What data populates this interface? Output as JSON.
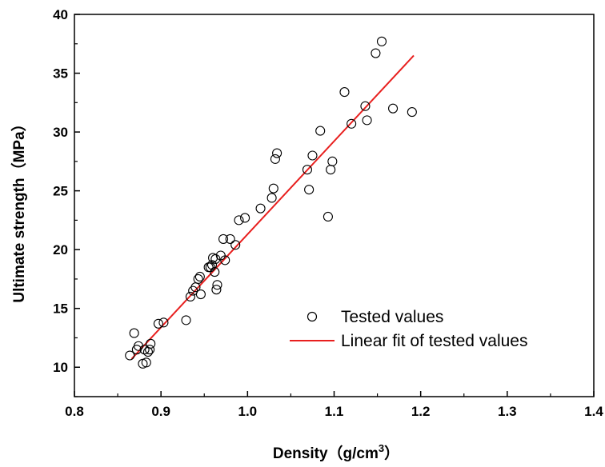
{
  "chart_data": {
    "type": "scatter",
    "xlabel": "Density（g/cm",
    "xlabel_sup": "3",
    "xlabel_close": "）",
    "ylabel": "Ultimate strength（MPa）",
    "xlim": [
      0.8,
      1.4
    ],
    "ylim": [
      7.5,
      40
    ],
    "x_ticks": [
      "0.8",
      "0.9",
      "1.0",
      "1.1",
      "1.2",
      "1.3",
      "1.4"
    ],
    "y_ticks": [
      "10",
      "15",
      "20",
      "25",
      "30",
      "35",
      "40"
    ],
    "legend_position": "bottom-right",
    "series": [
      {
        "name": "Tested values",
        "marker": "open-circle",
        "color": "#000000",
        "points": [
          [
            0.864,
            11.0
          ],
          [
            0.869,
            12.9
          ],
          [
            0.872,
            11.5
          ],
          [
            0.874,
            11.8
          ],
          [
            0.879,
            10.3
          ],
          [
            0.881,
            11.5
          ],
          [
            0.883,
            10.4
          ],
          [
            0.885,
            11.3
          ],
          [
            0.887,
            11.5
          ],
          [
            0.888,
            12.0
          ],
          [
            0.897,
            13.7
          ],
          [
            0.903,
            13.8
          ],
          [
            0.929,
            14.0
          ],
          [
            0.934,
            16.0
          ],
          [
            0.937,
            16.5
          ],
          [
            0.94,
            16.8
          ],
          [
            0.943,
            17.5
          ],
          [
            0.945,
            17.7
          ],
          [
            0.946,
            16.2
          ],
          [
            0.955,
            18.5
          ],
          [
            0.957,
            18.5
          ],
          [
            0.959,
            18.7
          ],
          [
            0.96,
            19.3
          ],
          [
            0.962,
            18.1
          ],
          [
            0.963,
            19.2
          ],
          [
            0.964,
            16.6
          ],
          [
            0.965,
            17.0
          ],
          [
            0.969,
            19.5
          ],
          [
            0.972,
            20.9
          ],
          [
            0.974,
            19.1
          ],
          [
            0.98,
            20.9
          ],
          [
            0.986,
            20.4
          ],
          [
            0.99,
            22.5
          ],
          [
            0.997,
            22.7
          ],
          [
            1.015,
            23.5
          ],
          [
            1.028,
            24.4
          ],
          [
            1.03,
            25.2
          ],
          [
            1.032,
            27.7
          ],
          [
            1.034,
            28.2
          ],
          [
            1.069,
            26.8
          ],
          [
            1.071,
            25.1
          ],
          [
            1.075,
            28.0
          ],
          [
            1.084,
            30.1
          ],
          [
            1.093,
            22.8
          ],
          [
            1.096,
            26.8
          ],
          [
            1.098,
            27.5
          ],
          [
            1.112,
            33.4
          ],
          [
            1.12,
            30.7
          ],
          [
            1.136,
            32.2
          ],
          [
            1.138,
            31.0
          ],
          [
            1.148,
            36.7
          ],
          [
            1.155,
            37.7
          ],
          [
            1.168,
            32.0
          ],
          [
            1.19,
            31.7
          ]
        ]
      },
      {
        "name": "Linear fit of tested values",
        "type": "line",
        "color": "#e8201f",
        "x": [
          0.866,
          1.192
        ],
        "y": [
          10.7,
          36.5
        ]
      }
    ]
  }
}
